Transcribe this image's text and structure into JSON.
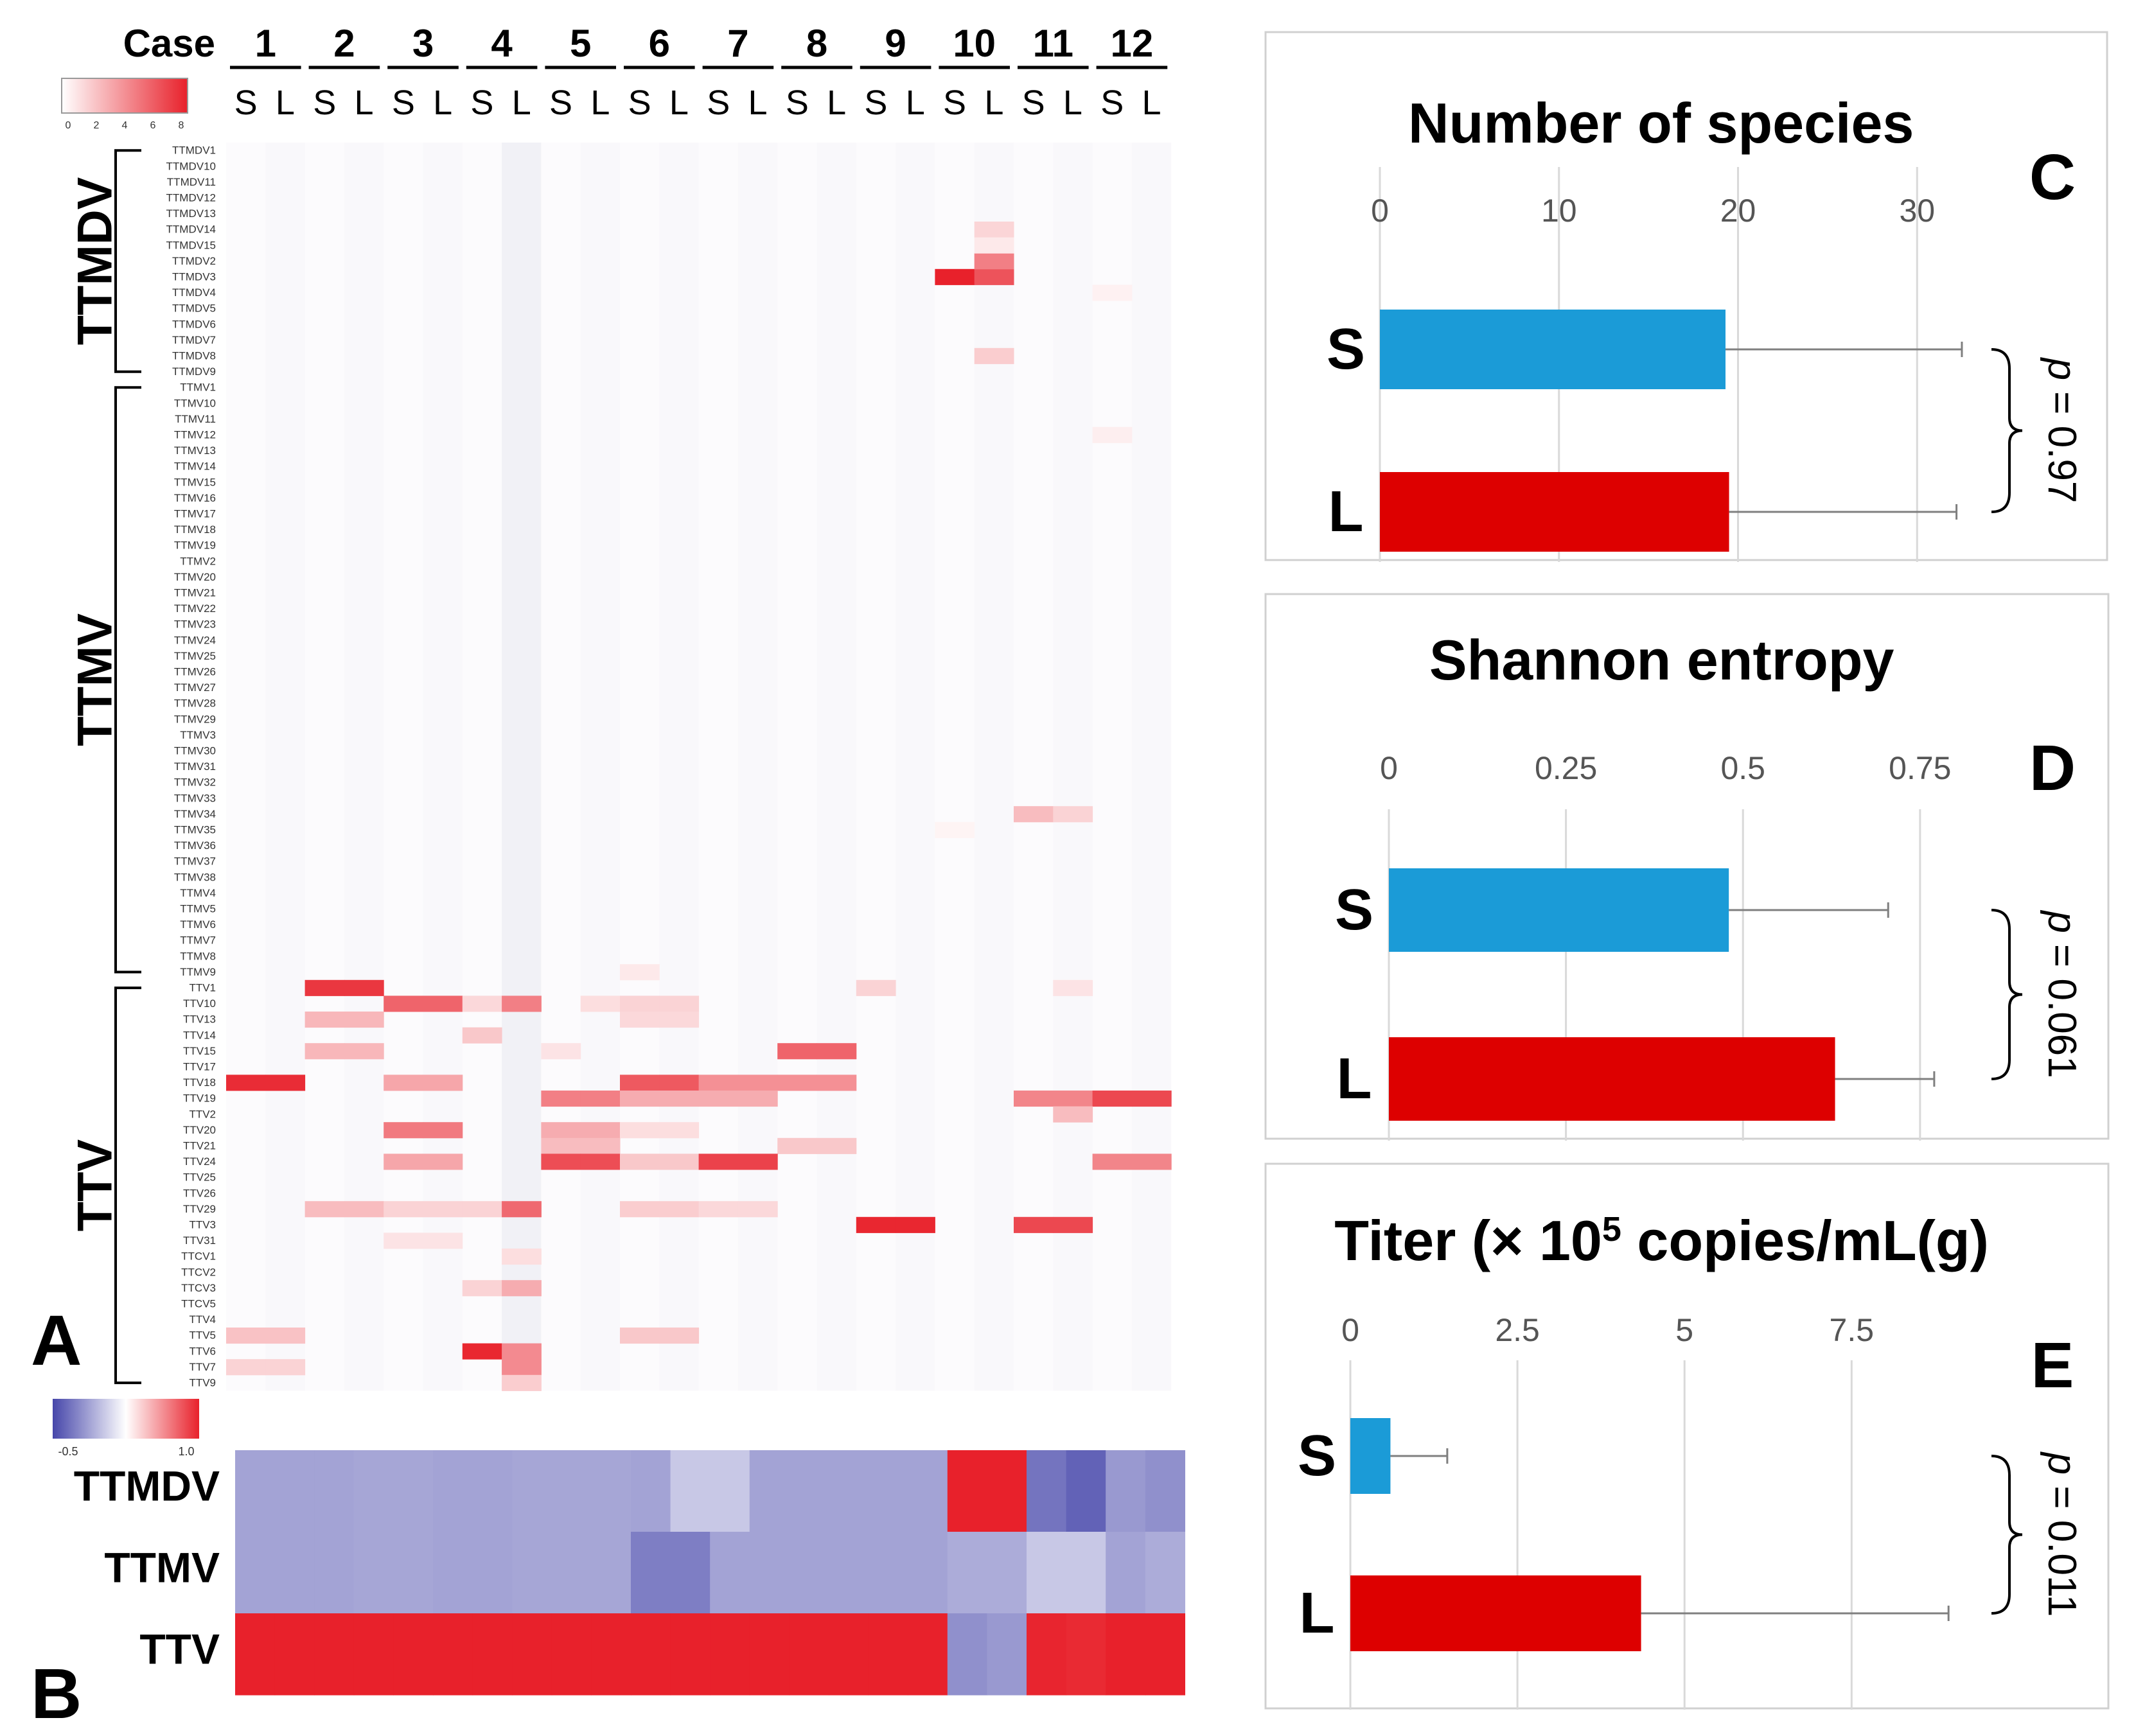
{
  "panels": {
    "A": {
      "letter": "A",
      "header_label": "Case",
      "cases": [
        "1",
        "2",
        "3",
        "4",
        "5",
        "6",
        "7",
        "8",
        "9",
        "10",
        "11",
        "12"
      ],
      "sample_types": [
        "S",
        "L"
      ],
      "scale": {
        "ticks": [
          "0",
          "2",
          "4",
          "6",
          "8"
        ],
        "min": 0,
        "max": 8,
        "colors": [
          "#ffffff",
          "#e8212b"
        ]
      },
      "groups": [
        {
          "name": "TTMDV",
          "rows": [
            "TTMDV1",
            "TTMDV10",
            "TTMDV11",
            "TTMDV12",
            "TTMDV13",
            "TTMDV14",
            "TTMDV15",
            "TTMDV2",
            "TTMDV3",
            "TTMDV4",
            "TTMDV5",
            "TTMDV6",
            "TTMDV7",
            "TTMDV8",
            "TTMDV9"
          ]
        },
        {
          "name": "TTMV",
          "rows": [
            "TTMV1",
            "TTMV10",
            "TTMV11",
            "TTMV12",
            "TTMV13",
            "TTMV14",
            "TTMV15",
            "TTMV16",
            "TTMV17",
            "TTMV18",
            "TTMV19",
            "TTMV2",
            "TTMV20",
            "TTMV21",
            "TTMV22",
            "TTMV23",
            "TTMV24",
            "TTMV25",
            "TTMV26",
            "TTMV27",
            "TTMV28",
            "TTMV29",
            "TTMV3",
            "TTMV30",
            "TTMV31",
            "TTMV32",
            "TTMV33",
            "TTMV34",
            "TTMV35",
            "TTMV36",
            "TTMV37",
            "TTMV38",
            "TTMV4",
            "TTMV5",
            "TTMV6",
            "TTMV7",
            "TTMV8",
            "TTMV9"
          ]
        },
        {
          "name": "TTV",
          "rows": [
            "TTV1",
            "TTV10",
            "TTV13",
            "TTV14",
            "TTV15",
            "TTV17",
            "TTV18",
            "TTV19",
            "TTV2",
            "TTV20",
            "TTV21",
            "TTV24",
            "TTV25",
            "TTV26",
            "TTV29",
            "TTV3",
            "TTV31",
            "TTCV1",
            "TTCV2",
            "TTCV3",
            "TTCV5",
            "TTV4",
            "TTV5",
            "TTV6",
            "TTV7",
            "TTV9"
          ]
        }
      ],
      "cells": [
        [
          "TTMDV3",
          18,
          8.0
        ],
        [
          "TTMDV3",
          19,
          6.2
        ],
        [
          "TTMDV2",
          19,
          4.6
        ],
        [
          "TTMDV14",
          19,
          1.5
        ],
        [
          "TTMDV15",
          19,
          0.8
        ],
        [
          "TTMDV8",
          19,
          1.8
        ],
        [
          "TTMDV4",
          22,
          0.5
        ],
        [
          "TTMV12",
          22,
          0.6
        ],
        [
          "TTMV34",
          20,
          2.4
        ],
        [
          "TTMV34",
          21,
          1.6
        ],
        [
          "TTMV35",
          18,
          0.4
        ],
        [
          "TTV1",
          2,
          7.2
        ],
        [
          "TTV1",
          3,
          7.2
        ],
        [
          "TTV10",
          4,
          5.6
        ],
        [
          "TTV10",
          5,
          5.6
        ],
        [
          "TTV10",
          6,
          1.4
        ],
        [
          "TTV10",
          7,
          4.6
        ],
        [
          "TTV10",
          9,
          1.2
        ],
        [
          "TTV10",
          10,
          1.6
        ],
        [
          "TTV10",
          11,
          1.6
        ],
        [
          "TTV13",
          2,
          2.6
        ],
        [
          "TTV13",
          3,
          2.6
        ],
        [
          "TTV13",
          10,
          1.4
        ],
        [
          "TTV13",
          11,
          1.4
        ],
        [
          "TTV14",
          6,
          2.0
        ],
        [
          "TTV15",
          2,
          2.6
        ],
        [
          "TTV15",
          3,
          2.6
        ],
        [
          "TTV15",
          8,
          1.0
        ],
        [
          "TTV15",
          14,
          5.6
        ],
        [
          "TTV15",
          15,
          5.6
        ],
        [
          "TTV18",
          0,
          7.6
        ],
        [
          "TTV18",
          1,
          7.6
        ],
        [
          "TTV18",
          4,
          3.2
        ],
        [
          "TTV18",
          5,
          3.2
        ],
        [
          "TTV18",
          10,
          6.0
        ],
        [
          "TTV18",
          11,
          6.0
        ],
        [
          "TTV18",
          12,
          4.0
        ],
        [
          "TTV18",
          13,
          4.0
        ],
        [
          "TTV18",
          14,
          4.0
        ],
        [
          "TTV18",
          15,
          4.0
        ],
        [
          "TTV19",
          8,
          4.6
        ],
        [
          "TTV19",
          9,
          4.6
        ],
        [
          "TTV19",
          10,
          3.0
        ],
        [
          "TTV19",
          11,
          3.0
        ],
        [
          "TTV19",
          12,
          3.0
        ],
        [
          "TTV19",
          13,
          3.0
        ],
        [
          "TTV19",
          20,
          4.4
        ],
        [
          "TTV19",
          21,
          4.4
        ],
        [
          "TTV19",
          22,
          6.6
        ],
        [
          "TTV19",
          23,
          6.6
        ],
        [
          "TTV2",
          21,
          2.4
        ],
        [
          "TTV20",
          4,
          4.8
        ],
        [
          "TTV20",
          5,
          4.8
        ],
        [
          "TTV20",
          8,
          3.0
        ],
        [
          "TTV20",
          9,
          3.0
        ],
        [
          "TTV20",
          10,
          1.2
        ],
        [
          "TTV20",
          11,
          1.2
        ],
        [
          "TTV21",
          8,
          2.4
        ],
        [
          "TTV21",
          9,
          2.4
        ],
        [
          "TTV21",
          14,
          2.0
        ],
        [
          "TTV21",
          15,
          2.0
        ],
        [
          "TTV24",
          4,
          3.2
        ],
        [
          "TTV24",
          5,
          3.2
        ],
        [
          "TTV24",
          8,
          6.4
        ],
        [
          "TTV24",
          9,
          6.4
        ],
        [
          "TTV24",
          10,
          2.0
        ],
        [
          "TTV24",
          11,
          2.0
        ],
        [
          "TTV24",
          12,
          6.8
        ],
        [
          "TTV24",
          13,
          6.8
        ],
        [
          "TTV24",
          22,
          4.4
        ],
        [
          "TTV24",
          23,
          4.4
        ],
        [
          "TTV29",
          2,
          2.4
        ],
        [
          "TTV29",
          3,
          2.4
        ],
        [
          "TTV29",
          4,
          1.6
        ],
        [
          "TTV29",
          5,
          1.6
        ],
        [
          "TTV29",
          6,
          1.6
        ],
        [
          "TTV29",
          7,
          5.4
        ],
        [
          "TTV29",
          10,
          1.8
        ],
        [
          "TTV29",
          11,
          1.8
        ],
        [
          "TTV29",
          12,
          1.4
        ],
        [
          "TTV29",
          13,
          1.4
        ],
        [
          "TTV3",
          16,
          7.8
        ],
        [
          "TTV3",
          17,
          7.8
        ],
        [
          "TTV3",
          20,
          6.6
        ],
        [
          "TTV3",
          21,
          6.6
        ],
        [
          "TTV31",
          4,
          1.0
        ],
        [
          "TTV31",
          5,
          1.0
        ],
        [
          "TTCV1",
          7,
          1.2
        ],
        [
          "TTCV3",
          6,
          1.6
        ],
        [
          "TTCV3",
          7,
          3.0
        ],
        [
          "TTV5",
          0,
          2.2
        ],
        [
          "TTV5",
          1,
          2.2
        ],
        [
          "TTV5",
          10,
          2.0
        ],
        [
          "TTV5",
          11,
          2.0
        ],
        [
          "TTV6",
          6,
          7.8
        ],
        [
          "TTV6",
          7,
          4.2
        ],
        [
          "TTV7",
          0,
          1.6
        ],
        [
          "TTV7",
          1,
          1.6
        ],
        [
          "TTV7",
          7,
          4.2
        ],
        [
          "TTV9",
          7,
          1.8
        ],
        [
          "TTV1",
          16,
          1.6
        ],
        [
          "TTV1",
          21,
          1.0
        ],
        [
          "TTMV9",
          10,
          0.8
        ]
      ]
    },
    "B": {
      "letter": "B",
      "scale": {
        "tick_low": "-0.5",
        "tick_high": "1.0",
        "min": -1.0,
        "max": 1.0,
        "colors": [
          "#4646aa",
          "#ffffff",
          "#e8212b"
        ]
      },
      "rows": [
        {
          "label": "TTMDV",
          "values": [
            -0.5,
            -0.5,
            -0.5,
            -0.48,
            -0.48,
            -0.5,
            -0.5,
            -0.48,
            -0.48,
            -0.48,
            -0.5,
            -0.3,
            -0.3,
            -0.5,
            -0.5,
            -0.5,
            -0.5,
            -0.5,
            1.0,
            1.0,
            -0.75,
            -0.85,
            -0.55,
            -0.6
          ]
        },
        {
          "label": "TTMV",
          "values": [
            -0.5,
            -0.5,
            -0.5,
            -0.48,
            -0.48,
            -0.5,
            -0.5,
            -0.48,
            -0.48,
            -0.48,
            -0.7,
            -0.7,
            -0.5,
            -0.5,
            -0.5,
            -0.5,
            -0.5,
            -0.5,
            -0.45,
            -0.45,
            -0.3,
            -0.3,
            -0.5,
            -0.45
          ]
        },
        {
          "label": "TTV",
          "values": [
            1.0,
            1.0,
            1.0,
            1.0,
            1.0,
            1.0,
            1.0,
            1.0,
            1.0,
            1.0,
            1.0,
            1.0,
            1.0,
            1.0,
            1.0,
            1.0,
            1.0,
            1.0,
            -0.6,
            -0.55,
            0.98,
            0.96,
            1.0,
            1.0
          ]
        }
      ]
    }
  },
  "chart_data": [
    {
      "type": "bar",
      "panel": "C",
      "title": "Number of species",
      "categories": [
        "S",
        "L"
      ],
      "values": [
        19.3,
        19.5
      ],
      "errors": [
        13.2,
        12.7
      ],
      "colors": [
        "#1b9bd7",
        "#dd0000"
      ],
      "xlim": [
        0,
        32
      ],
      "ticks": [
        0,
        10,
        20,
        30
      ],
      "tick_labels": [
        "0",
        "10",
        "20",
        "30"
      ],
      "p_label": "p = 0.97"
    },
    {
      "type": "bar",
      "panel": "D",
      "title": "Shannon entropy",
      "categories": [
        "S",
        "L"
      ],
      "values": [
        0.48,
        0.63
      ],
      "errors": [
        0.225,
        0.14
      ],
      "colors": [
        "#1b9bd7",
        "#dd0000"
      ],
      "xlim": [
        0,
        0.82
      ],
      "ticks": [
        0,
        0.25,
        0.5,
        0.75
      ],
      "tick_labels": [
        "0",
        "0.25",
        "0.5",
        "0.75"
      ],
      "p_label": "p = 0.061"
    },
    {
      "type": "bar",
      "panel": "E",
      "title": "Titer (× 10",
      "title_sup": "5",
      "title_rest": " copies/mL(g)",
      "categories": [
        "S",
        "L"
      ],
      "values": [
        0.6,
        4.35
      ],
      "errors": [
        0.85,
        4.6
      ],
      "colors": [
        "#1b9bd7",
        "#dd0000"
      ],
      "xlim": [
        0,
        9.4
      ],
      "ticks": [
        0,
        2.5,
        5,
        7.5
      ],
      "tick_labels": [
        "0",
        "2.5",
        "5",
        "7.5"
      ],
      "p_label": "p = 0.011"
    }
  ]
}
